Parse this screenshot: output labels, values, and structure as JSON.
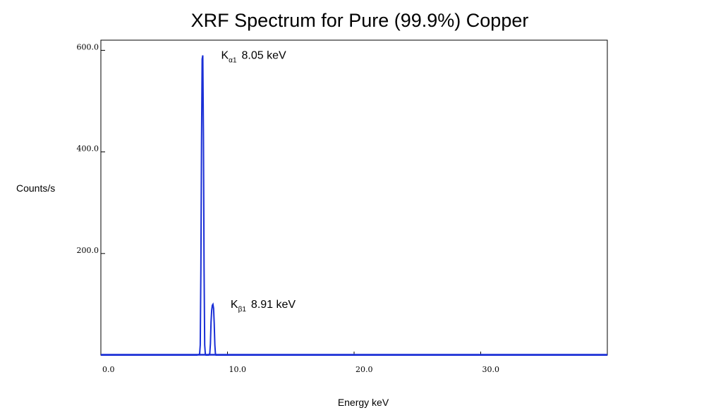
{
  "chart_data": {
    "type": "line",
    "title": "XRF Spectrum for Pure (99.9%) Copper",
    "xlabel": "Energy keV",
    "ylabel": "Counts/s",
    "xlim": [
      0,
      40
    ],
    "ylim": [
      0,
      620
    ],
    "grid": false,
    "legend": "none",
    "x_ticks": [
      {
        "value": 0,
        "label": "0.0"
      },
      {
        "value": 10,
        "label": "10.0"
      },
      {
        "value": 20,
        "label": "20.0"
      },
      {
        "value": 30,
        "label": "30.0"
      }
    ],
    "y_ticks": [
      {
        "value": 200,
        "label": "200.0"
      },
      {
        "value": 400,
        "label": "400.0"
      },
      {
        "value": 600,
        "label": "600.0"
      }
    ],
    "series": [
      {
        "color": "#1a2fd6",
        "x": [
          0,
          7.6,
          7.8,
          7.85,
          7.9,
          7.95,
          8.0,
          8.05,
          8.1,
          8.15,
          8.2,
          8.25,
          8.3,
          8.4,
          8.5,
          8.6,
          8.65,
          8.7,
          8.75,
          8.8,
          8.85,
          8.9,
          8.95,
          9.0,
          9.05,
          9.1,
          9.2,
          9.3,
          9.4,
          40
        ],
        "y": [
          0,
          0,
          2,
          20,
          170,
          420,
          583,
          590,
          436,
          172,
          20,
          2,
          0,
          0,
          0,
          3,
          22,
          65,
          88,
          98,
          100,
          92,
          62,
          20,
          3,
          0,
          0,
          0,
          0,
          0
        ]
      }
    ],
    "annotations": [
      {
        "main": "K",
        "sub": "α1",
        "text": "8.05 keV",
        "x": 8.05,
        "y": 590
      },
      {
        "main": "K",
        "sub": "β1",
        "text": "8.91 keV",
        "x": 8.91,
        "y": 100
      }
    ]
  }
}
